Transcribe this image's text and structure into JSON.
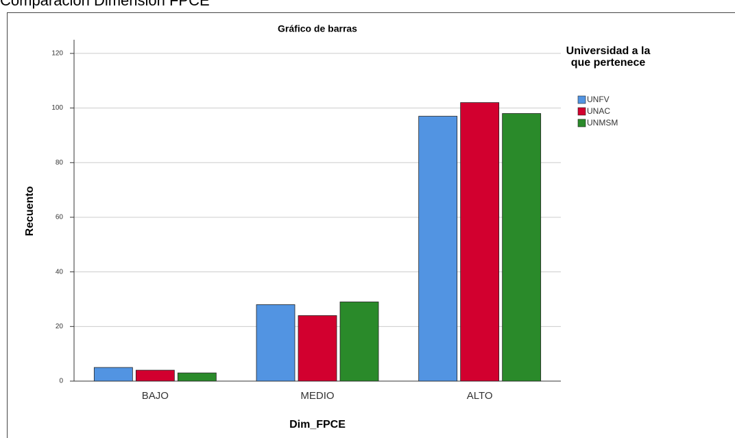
{
  "heading": "Comparación Dimensión FPCE",
  "chart_data": {
    "type": "bar",
    "title": "Gráfico de barras",
    "x_label": "Dim_FPCE",
    "y_label": "Recuento",
    "legend_title": "Universidad a la que pertenece",
    "categories": [
      "BAJO",
      "MEDIO",
      "ALTO"
    ],
    "series": [
      {
        "name": "UNFV",
        "color": "#5294e2",
        "values": [
          5,
          28,
          97
        ]
      },
      {
        "name": "UNAC",
        "color": "#d2002f",
        "values": [
          4,
          24,
          102
        ]
      },
      {
        "name": "UNMSM",
        "color": "#2a8a2a",
        "values": [
          3,
          29,
          98
        ]
      }
    ],
    "ylim": [
      0,
      125
    ],
    "yticks": [
      0,
      20,
      40,
      60,
      80,
      100,
      120
    ],
    "grid": true,
    "legend": "right"
  }
}
